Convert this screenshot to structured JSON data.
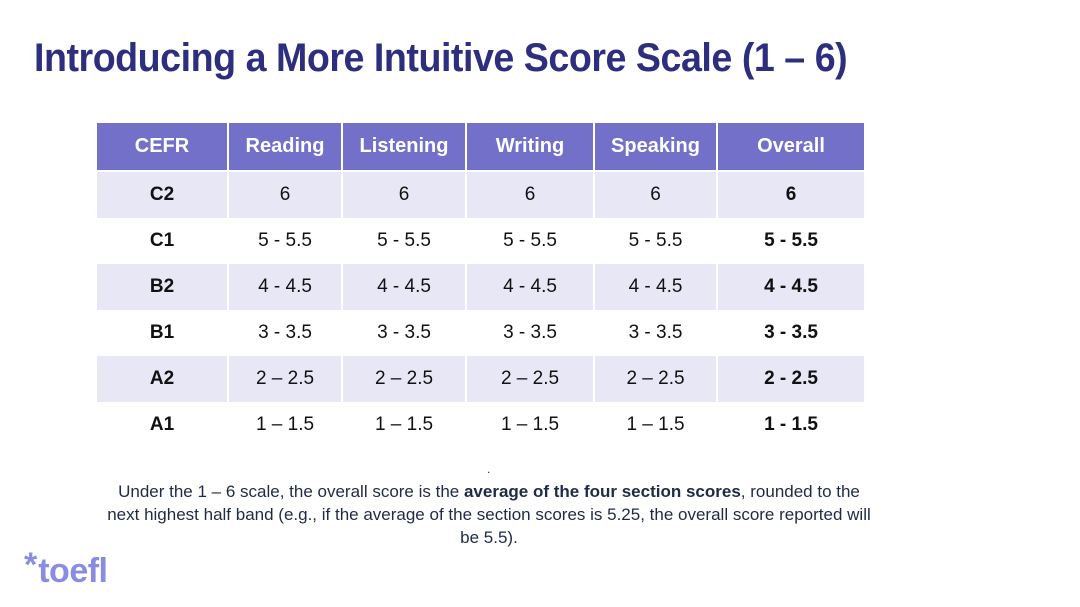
{
  "title": "Introducing a More Intuitive Score Scale (1 – 6)",
  "table": {
    "headers": [
      "CEFR",
      "Reading",
      "Listening",
      "Writing",
      "Speaking",
      "Overall"
    ],
    "rows": [
      [
        "C2",
        "6",
        "6",
        "6",
        "6",
        "6"
      ],
      [
        "C1",
        "5 - 5.5",
        "5 - 5.5",
        "5 - 5.5",
        "5 - 5.5",
        "5 - 5.5"
      ],
      [
        "B2",
        "4 - 4.5",
        "4 - 4.5",
        "4 - 4.5",
        "4 - 4.5",
        "4 - 4.5"
      ],
      [
        "B1",
        "3 - 3.5",
        "3 - 3.5",
        "3 - 3.5",
        "3 - 3.5",
        "3 - 3.5"
      ],
      [
        "A2",
        "2 – 2.5",
        "2 – 2.5",
        "2 – 2.5",
        "2 – 2.5",
        "2 - 2.5"
      ],
      [
        "A1",
        "1 – 1.5",
        "1 – 1.5",
        "1 – 1.5",
        "1 – 1.5",
        "1 - 1.5"
      ]
    ]
  },
  "dot": ".",
  "note": {
    "before": "Under the 1 – 6 scale, the overall score is the ",
    "bold": "average of the four section scores",
    "after": ", rounded to the next highest half band (e.g., if the average of the section scores is 5.25, the overall score reported will be 5.5)."
  },
  "logo": {
    "star": "*",
    "word": "toefl",
    "color": "#8a8ce4"
  },
  "colors": {
    "title": "#2e2e7e",
    "header_bg": "#7270c9",
    "shaded_row_bg": "#e7e7f6"
  }
}
